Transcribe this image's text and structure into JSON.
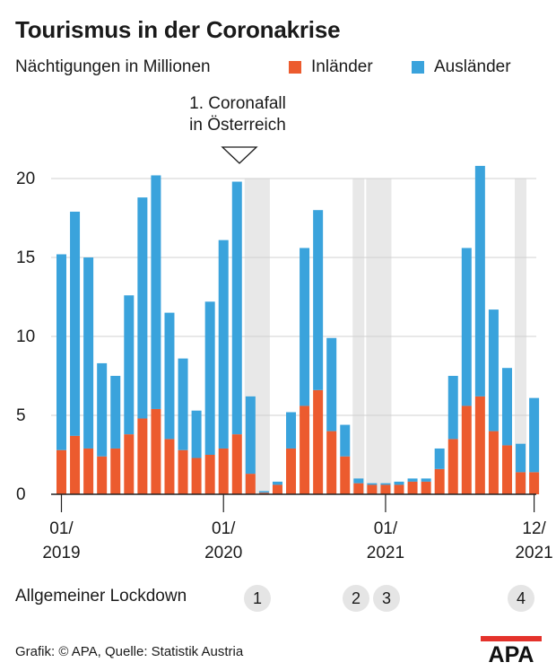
{
  "title": "Tourismus in der Coronakrise",
  "subtitle": "Nächtigungen in Millionen",
  "annotation": {
    "line1": "1. Coronafall",
    "line2": "in Österreich"
  },
  "lockdown_label": "Allgemeiner Lockdown",
  "lockdowns": [
    "1",
    "2",
    "3",
    "4"
  ],
  "source": "Grafik: © APA, Quelle: Statistik Austria",
  "logo_text": "APA",
  "colors": {
    "inlaender": "#ec5b2e",
    "auslaender": "#3aa3dc",
    "lockdown_band": "#e8e8e8",
    "grid": "#d0d0d0"
  },
  "chart_data": {
    "type": "bar",
    "stacked": true,
    "ylim": [
      0,
      20
    ],
    "yticks": [
      0,
      5,
      10,
      15,
      20
    ],
    "grid": true,
    "legend_position": "top-right",
    "x_tick_labels": [
      {
        "month": "01/",
        "year": "2019"
      },
      {
        "month": "01/",
        "year": "2020"
      },
      {
        "month": "01/",
        "year": "2021"
      },
      {
        "month": "12/",
        "year": "2021"
      }
    ],
    "categories": [
      "01/2019",
      "02/2019",
      "03/2019",
      "04/2019",
      "05/2019",
      "06/2019",
      "07/2019",
      "08/2019",
      "09/2019",
      "10/2019",
      "11/2019",
      "12/2019",
      "01/2020",
      "02/2020",
      "03/2020",
      "04/2020",
      "05/2020",
      "06/2020",
      "07/2020",
      "08/2020",
      "09/2020",
      "10/2020",
      "11/2020",
      "12/2020",
      "01/2021",
      "02/2021",
      "03/2021",
      "04/2021",
      "05/2021",
      "06/2021",
      "07/2021",
      "08/2021",
      "09/2021",
      "10/2021",
      "11/2021",
      "12/2021"
    ],
    "series": [
      {
        "name": "Inländer",
        "values": [
          2.8,
          3.7,
          2.9,
          2.4,
          2.9,
          3.8,
          4.8,
          5.4,
          3.5,
          2.8,
          2.3,
          2.5,
          2.9,
          3.8,
          1.3,
          0.1,
          0.6,
          2.9,
          5.6,
          6.6,
          4.0,
          2.4,
          0.7,
          0.6,
          0.6,
          0.6,
          0.8,
          0.8,
          1.6,
          3.5,
          5.6,
          6.2,
          4.0,
          3.1,
          1.4,
          1.4
        ]
      },
      {
        "name": "Ausländer",
        "values": [
          12.4,
          14.2,
          12.1,
          5.9,
          4.6,
          8.8,
          14.0,
          14.8,
          8.0,
          5.8,
          3.0,
          9.7,
          13.2,
          16.0,
          4.9,
          0.1,
          0.2,
          2.3,
          10.0,
          11.4,
          5.9,
          2.0,
          0.3,
          0.1,
          0.1,
          0.2,
          0.2,
          0.2,
          1.3,
          4.0,
          10.0,
          14.6,
          7.7,
          4.9,
          1.8,
          4.7
        ]
      }
    ],
    "lockdowns": [
      {
        "label": "1",
        "from": "03/2020",
        "to": "04/2020"
      },
      {
        "label": "2",
        "from": "11/2020",
        "to": "11/2020"
      },
      {
        "label": "3",
        "from": "12/2020",
        "to": "01/2021"
      },
      {
        "label": "4",
        "from": "11/2021",
        "to": "11/2021"
      }
    ]
  }
}
